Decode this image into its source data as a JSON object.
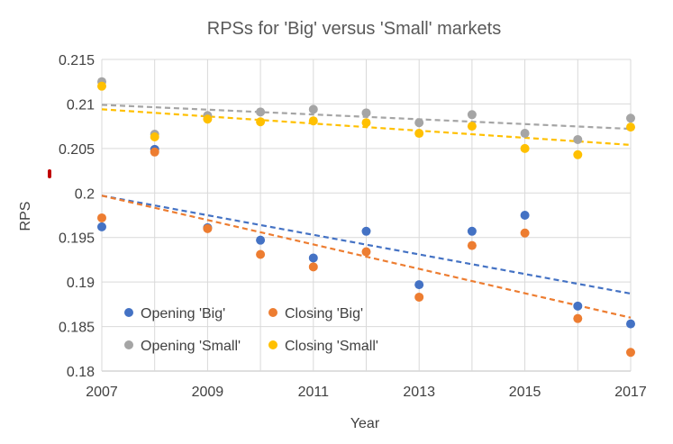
{
  "chart_data": {
    "type": "scatter",
    "title": "RPSs for 'Big' versus 'Small' markets",
    "xlabel": "Year",
    "ylabel": "RPS",
    "xlim": [
      2007,
      2017
    ],
    "ylim": [
      0.18,
      0.215
    ],
    "x_ticks": [
      "2007",
      "2009",
      "2011",
      "2013",
      "2015",
      "2017"
    ],
    "y_ticks": [
      "0.215",
      "0.21",
      "0.205",
      "0.2",
      "0.195",
      "0.19",
      "0.185",
      "0.18"
    ],
    "legend_position": "lower-left",
    "series": [
      {
        "name": "Opening 'Big'",
        "color": "#4472C4",
        "x": [
          2007,
          2008,
          2009,
          2010,
          2011,
          2012,
          2013,
          2014,
          2015,
          2016,
          2017
        ],
        "values": [
          0.1962,
          0.2049,
          0.1961,
          0.1947,
          0.1927,
          0.1957,
          0.1897,
          0.1957,
          0.1975,
          0.1873,
          0.1853
        ],
        "trendline": [
          0.1997,
          0.1887
        ]
      },
      {
        "name": "Closing 'Big'",
        "color": "#ED7D31",
        "x": [
          2007,
          2008,
          2009,
          2010,
          2011,
          2012,
          2013,
          2014,
          2015,
          2016,
          2017
        ],
        "values": [
          0.1972,
          0.2046,
          0.196,
          0.1931,
          0.1917,
          0.1934,
          0.1883,
          0.1941,
          0.1955,
          0.1859,
          0.1821
        ],
        "trendline": [
          0.1997,
          0.186
        ]
      },
      {
        "name": "Opening 'Small'",
        "color": "#A5A5A5",
        "x": [
          2007,
          2008,
          2009,
          2010,
          2011,
          2012,
          2013,
          2014,
          2015,
          2016,
          2017
        ],
        "values": [
          0.2125,
          0.2066,
          0.2087,
          0.2091,
          0.2094,
          0.209,
          0.2079,
          0.2088,
          0.2067,
          0.206,
          0.2084
        ],
        "trendline": [
          0.2099,
          0.2072
        ]
      },
      {
        "name": "Closing 'Small'",
        "color": "#FFC000",
        "x": [
          2007,
          2008,
          2009,
          2010,
          2011,
          2012,
          2013,
          2014,
          2015,
          2016,
          2017
        ],
        "values": [
          0.212,
          0.2063,
          0.2083,
          0.208,
          0.2081,
          0.2079,
          0.2067,
          0.2075,
          0.205,
          0.2043,
          0.2074
        ],
        "trendline": [
          0.2094,
          0.2054
        ]
      }
    ]
  }
}
